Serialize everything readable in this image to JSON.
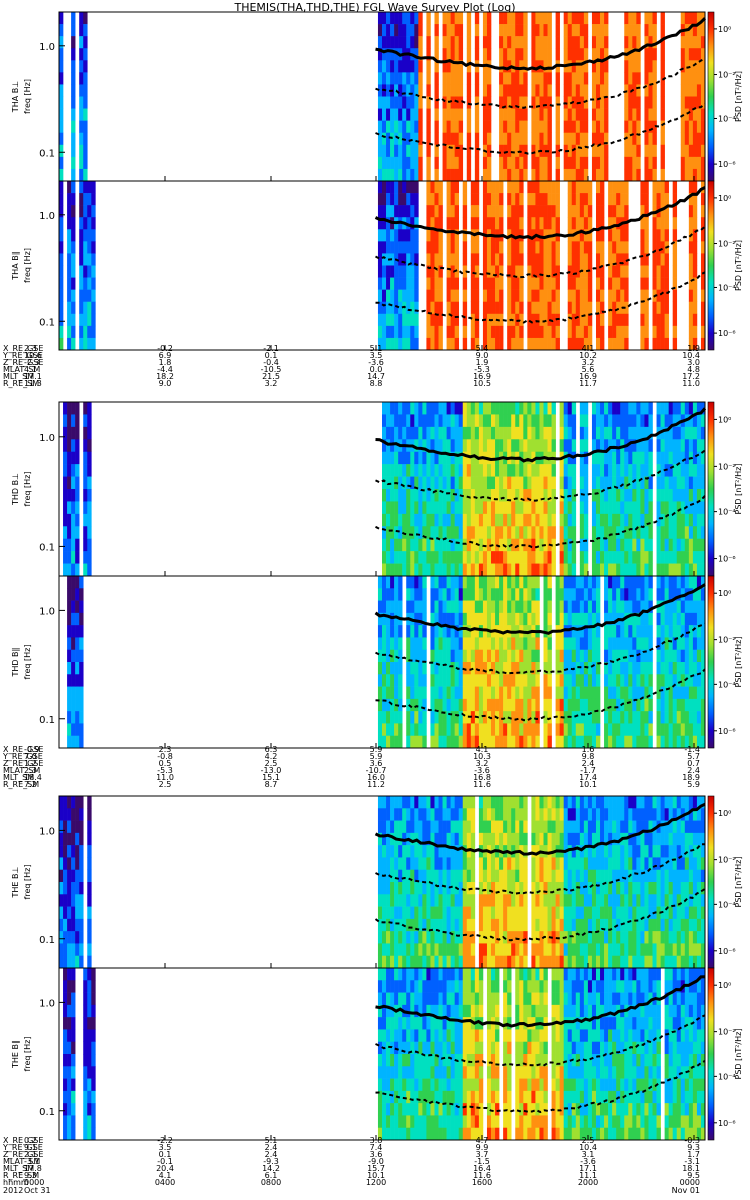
{
  "chart_data": {
    "type": "heatmap",
    "title": "THEMIS(THA,THD,THE) FGL Wave Survey Plot (Log)",
    "panels": [
      {
        "name": "THA B_L",
        "ylabel": "THA B⊥",
        "yunits": "freq [Hz]",
        "zlabel": "PSD [nT²/Hz]",
        "yticks": [
          "1.0",
          "0.1"
        ],
        "zticks": [
          "10⁰",
          "10⁻²",
          "10⁻⁴",
          "10⁻⁶"
        ]
      },
      {
        "name": "THA B_par",
        "ylabel": "THA B∥",
        "yunits": "freq [Hz]",
        "zlabel": "PSD [nT²/Hz]",
        "yticks": [
          "1.0",
          "0.1"
        ],
        "zticks": [
          "10⁰",
          "10⁻²",
          "10⁻⁴",
          "10⁻⁶"
        ]
      },
      {
        "name": "THD B_L",
        "ylabel": "THD B⊥",
        "yunits": "freq [Hz]",
        "zlabel": "PSD [nT²/Hz]",
        "yticks": [
          "1.0",
          "0.1"
        ],
        "zticks": [
          "10⁰",
          "10⁻²",
          "10⁻⁴",
          "10⁻⁶"
        ]
      },
      {
        "name": "THD B_par",
        "ylabel": "THD B∥",
        "yunits": "freq [Hz]",
        "zlabel": "PSD [nT²/Hz]",
        "yticks": [
          "1.0",
          "0.1"
        ],
        "zticks": [
          "10⁰",
          "10⁻²",
          "10⁻⁴",
          "10⁻⁶"
        ]
      },
      {
        "name": "THE B_L",
        "ylabel": "THE B⊥",
        "yunits": "freq [Hz]",
        "zlabel": "PSD [nT²/Hz]",
        "yticks": [
          "1.0",
          "0.1"
        ],
        "zticks": [
          "10⁰",
          "10⁻²",
          "10⁻⁴",
          "10⁻⁶"
        ]
      },
      {
        "name": "THE B_par",
        "ylabel": "THE B∥",
        "yunits": "freq [Hz]",
        "zlabel": "PSD [nT²/Hz]",
        "yticks": [
          "1.0",
          "0.1"
        ],
        "zticks": [
          "10⁰",
          "10⁻²",
          "10⁻⁴",
          "10⁻⁶"
        ]
      }
    ],
    "ephemeris_blocks": [
      {
        "rows": [
          {
            "label": "X_RE_GSE",
            "values": [
              "2.3",
              "-0.2",
              "-2.1",
              "5.1",
              "5.4",
              "4.1",
              "1.9"
            ]
          },
          {
            "label": "Y_RE_GSE",
            "values": [
              "10.6",
              "6.9",
              "0.1",
              "3.5",
              "9.0",
              "10.2",
              "10.4"
            ]
          },
          {
            "label": "Z_RE_GSE",
            "values": [
              "-2.3",
              "1.8",
              "-0.4",
              "-3.6",
              "1.9",
              "3.2",
              "3.0"
            ]
          },
          {
            "label": "MLAT_SM",
            "values": [
              "4.1",
              "-4.4",
              "-10.5",
              "0.0",
              "-5.3",
              "5.6",
              "4.8"
            ]
          },
          {
            "label": "MLT_SM",
            "values": [
              "17.1",
              "18.2",
              "21.5",
              "14.7",
              "16.9",
              "16.9",
              "17.2"
            ]
          },
          {
            "label": "R_RE_SM",
            "values": [
              "11.3",
              "9.0",
              "3.2",
              "8.8",
              "10.5",
              "11.7",
              "11.0"
            ]
          }
        ]
      },
      {
        "rows": [
          {
            "label": "X_RE_GSE",
            "values": [
              "-0.9",
              "2.3",
              "6.3",
              "5.9",
              "4.1",
              "1.6",
              "-1.4"
            ]
          },
          {
            "label": "Y_RE_GSE",
            "values": [
              "7.0",
              "-0.8",
              "4.2",
              "5.9",
              "10.3",
              "9.8",
              "5.7"
            ]
          },
          {
            "label": "Z_RE_GSE",
            "values": [
              "1.2",
              "0.5",
              "2.5",
              "3.6",
              "3.2",
              "2.4",
              "0.7"
            ]
          },
          {
            "label": "MLAT_SM",
            "values": [
              "2.3",
              "-5.3",
              "-13.0",
              "-10.7",
              "-3.6",
              "-1.7",
              "2.4"
            ]
          },
          {
            "label": "MLT_SM",
            "values": [
              "18.4",
              "11.0",
              "15.1",
              "16.0",
              "16.8",
              "17.4",
              "18.9"
            ]
          },
          {
            "label": "R_RE_SM",
            "values": [
              "7.2",
              "2.5",
              "8.7",
              "11.2",
              "11.6",
              "10.1",
              "5.9"
            ]
          }
        ]
      },
      {
        "rows": [
          {
            "label": "X_RE_GSE",
            "values": [
              "0.2",
              "-2.2",
              "5.1",
              "3.8",
              "4.7",
              "2.5",
              "-0.3"
            ]
          },
          {
            "label": "Y_RE_GSE",
            "values": [
              "9.1",
              "3.5",
              "2.4",
              "7.4",
              "9.9",
              "10.4",
              "9.3"
            ]
          },
          {
            "label": "Z_RE_GSE",
            "values": [
              "2.1",
              "0.1",
              "2.4",
              "3.6",
              "3.7",
              "3.1",
              "1.7"
            ]
          },
          {
            "label": "MLAT_SM",
            "values": [
              "-3.1",
              "-0.1",
              "-9.3",
              "-9.0",
              "-1.5",
              "-3.6",
              "-3.1"
            ]
          },
          {
            "label": "MLT_SM",
            "values": [
              "17.8",
              "20.4",
              "14.2",
              "15.7",
              "16.4",
              "17.1",
              "18.1"
            ]
          },
          {
            "label": "R_RE_SM",
            "values": [
              "9.3",
              "4.1",
              "6.1",
              "10.1",
              "11.6",
              "11.1",
              "9.5"
            ]
          }
        ]
      }
    ],
    "time_axis": {
      "label_rows": [
        "hhmm",
        "2012"
      ],
      "ticks": [
        {
          "hhmm": "0000",
          "date": "Oct 31"
        },
        {
          "hhmm": "0400",
          "date": ""
        },
        {
          "hhmm": "0800",
          "date": ""
        },
        {
          "hhmm": "1200",
          "date": ""
        },
        {
          "hhmm": "1600",
          "date": ""
        },
        {
          "hhmm": "2000",
          "date": ""
        },
        {
          "hhmm": "0000",
          "date": "Nov 01"
        }
      ]
    },
    "colorscale": [
      "#3a0a6a",
      "#1a00c8",
      "#0060ff",
      "#00b4ff",
      "#00e0c0",
      "#30d050",
      "#a0e030",
      "#f0e020",
      "#ff9010",
      "#ff3000",
      "#c80000"
    ]
  }
}
